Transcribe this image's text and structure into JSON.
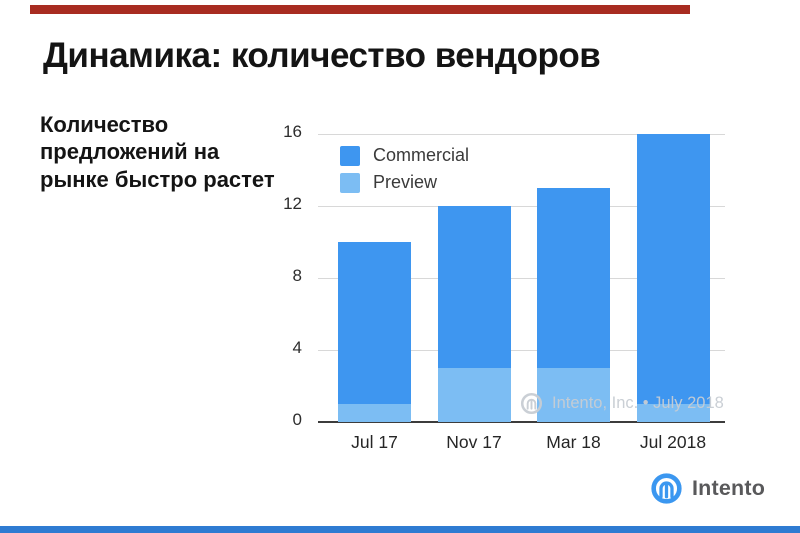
{
  "slide": {
    "title": "Динамика: количество вендоров",
    "subtitle": "Количество предложений на рынке быстро растет"
  },
  "chart_data": {
    "type": "bar",
    "stacked": true,
    "title": "",
    "xlabel": "",
    "ylabel": "",
    "categories": [
      "Jul 17",
      "Nov 17",
      "Mar 18",
      "Jul 2018"
    ],
    "series": [
      {
        "name": "Commercial",
        "color": "#3e96f0",
        "values": [
          9,
          9,
          10,
          15
        ]
      },
      {
        "name": "Preview",
        "color": "#7cbdf3",
        "values": [
          1,
          3,
          3,
          1
        ]
      }
    ],
    "totals": [
      10,
      12,
      13,
      16
    ],
    "ylim": [
      0,
      16
    ],
    "yticks": [
      0,
      4,
      8,
      12,
      16
    ],
    "grid": true,
    "legend_position": "top-left-inside"
  },
  "watermark": {
    "text": "Intento, Inc. • July 2018"
  },
  "footer": {
    "brand": "Intento"
  },
  "colors": {
    "top_accent_bar": "#a82c21",
    "bottom_accent_bar": "#2e7bd2",
    "commercial": "#3e96f0",
    "preview": "#7cbdf3",
    "gridline": "#d8d8d8",
    "axis": "#3c3c3c",
    "watermark_gray": "#c7ccd3",
    "logo_blue": "#3b97f0"
  }
}
